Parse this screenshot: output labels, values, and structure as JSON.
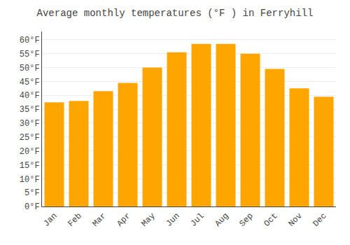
{
  "chart_data": {
    "type": "bar",
    "title": "Average monthly temperatures (°F ) in Ferryhill",
    "categories": [
      "Jan",
      "Feb",
      "Mar",
      "Apr",
      "May",
      "Jun",
      "Jul",
      "Aug",
      "Sep",
      "Oct",
      "Nov",
      "Dec"
    ],
    "values": [
      37.5,
      38.0,
      41.5,
      44.5,
      50.0,
      55.5,
      58.5,
      58.5,
      55.0,
      49.5,
      42.5,
      39.5
    ],
    "color": "#FFA500",
    "ylim": [
      0,
      63
    ],
    "yticks": [
      {
        "value": 0,
        "label": "0°F"
      },
      {
        "value": 5,
        "label": "5°F"
      },
      {
        "value": 10,
        "label": "10°F"
      },
      {
        "value": 15,
        "label": "15°F"
      },
      {
        "value": 20,
        "label": "20°F"
      },
      {
        "value": 25,
        "label": "25°F"
      },
      {
        "value": 30,
        "label": "30°F"
      },
      {
        "value": 35,
        "label": "35°F"
      },
      {
        "value": 40,
        "label": "40°F"
      },
      {
        "value": 45,
        "label": "45°F"
      },
      {
        "value": 50,
        "label": "50°F"
      },
      {
        "value": 55,
        "label": "55°F"
      },
      {
        "value": 60,
        "label": "60°F"
      }
    ],
    "grid": true
  }
}
